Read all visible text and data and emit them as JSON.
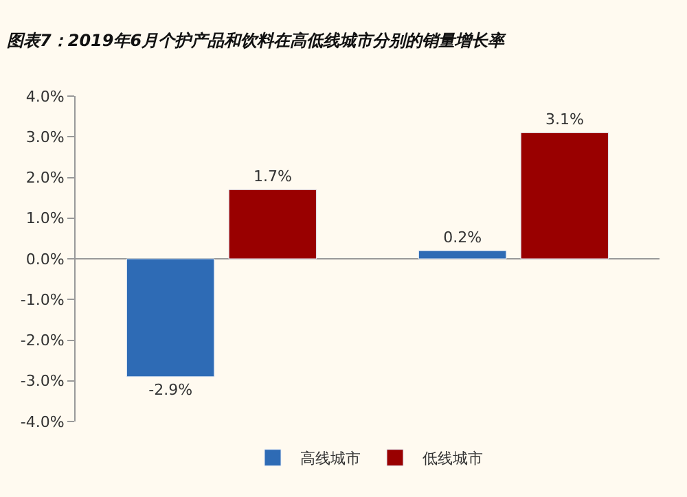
{
  "chart_data": {
    "type": "bar",
    "title": "图表7：2019年6月个护产品和饮料在高低线城市分别的销量增长率",
    "categories": [
      null,
      null
    ],
    "series": [
      {
        "name": "高线城市",
        "color": "#2e6bb5",
        "values": [
          -2.9,
          0.2
        ],
        "value_labels": [
          "-2.9%",
          "0.2%"
        ]
      },
      {
        "name": "低线城市",
        "color": "#990000",
        "values": [
          1.7,
          3.1
        ],
        "value_labels": [
          "1.7%",
          "3.1%"
        ]
      }
    ],
    "ylim": [
      -4,
      4
    ],
    "yticks": [
      {
        "value": -4,
        "label": "-4.0%"
      },
      {
        "value": -3,
        "label": "-3.0%"
      },
      {
        "value": -2,
        "label": "-2.0%"
      },
      {
        "value": -1,
        "label": "-1.0%"
      },
      {
        "value": 0,
        "label": "0.0%"
      },
      {
        "value": 1,
        "label": "1.0%"
      },
      {
        "value": 2,
        "label": "2.0%"
      },
      {
        "value": 3,
        "label": "3.0%"
      },
      {
        "value": 4,
        "label": "4.0%"
      }
    ],
    "legend": "bottom"
  }
}
